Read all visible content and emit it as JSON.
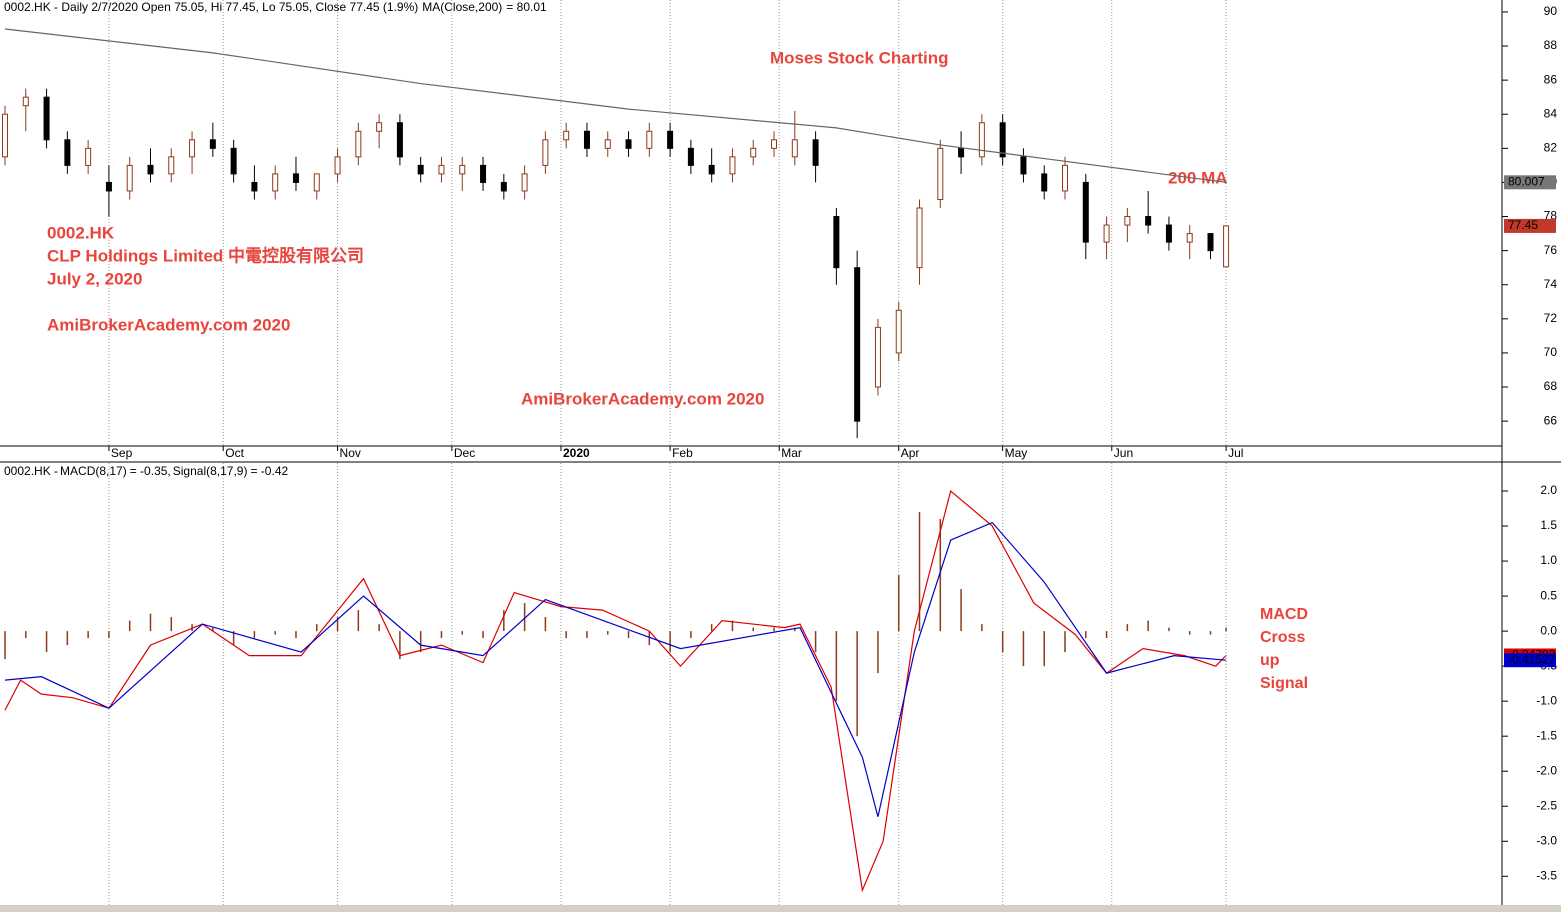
{
  "chart_data": [
    {
      "type": "candlestick",
      "title": "0002.HK - Daily 2/7/2020 Open 75.05, Hi 77.45, Lo 75.05, Close 77.45 (1.9%)",
      "annotations": [
        "Moses Stock Charting",
        "200 MA",
        "0002.HK",
        "CLP Holdings Limited 中電控股有限公司",
        "July 2, 2020",
        "AmiBrokerAcademy.com  2020",
        "AmiBrokerAcademy.com  2020"
      ],
      "xlim": [
        0,
        288.1
      ],
      "xticks": [
        {
          "value": 20,
          "label": "Sep"
        },
        {
          "value": 42,
          "label": "Oct"
        },
        {
          "value": 64,
          "label": "Nov"
        },
        {
          "value": 86,
          "label": "Dec"
        },
        {
          "value": 107,
          "label": "2020"
        },
        {
          "value": 128,
          "label": "Feb"
        },
        {
          "value": 149,
          "label": "Mar"
        },
        {
          "value": 172,
          "label": "Apr"
        },
        {
          "value": 192,
          "label": "May"
        },
        {
          "value": 213,
          "label": "Jun"
        },
        {
          "value": 235,
          "label": "Jul"
        }
      ],
      "ylim": [
        64.6,
        90.7
      ],
      "yticks": [
        66,
        68,
        70,
        72,
        74,
        76,
        78,
        80,
        82,
        84,
        86,
        88,
        90
      ],
      "up_color": "#8b3a1a",
      "down_color": "#000000",
      "candles": {
        "x": [
          0,
          4,
          8,
          12,
          16,
          20,
          24,
          28,
          32,
          36,
          40,
          44,
          48,
          52,
          56,
          60,
          64,
          68,
          72,
          76,
          80,
          84,
          88,
          92,
          96,
          100,
          104,
          108,
          112,
          116,
          120,
          124,
          128,
          132,
          136,
          140,
          144,
          148,
          152,
          156,
          160,
          164,
          168,
          172,
          176,
          180,
          184,
          188,
          192,
          196,
          200,
          204,
          208,
          212,
          216,
          220,
          224,
          228,
          232,
          235
        ],
        "open": [
          81.5,
          84.5,
          85,
          82.5,
          81,
          80,
          79.5,
          81,
          80.5,
          81.5,
          82.5,
          82,
          80,
          79.5,
          80.5,
          79.5,
          80.5,
          81.5,
          83,
          83.5,
          81,
          80.5,
          80.5,
          81,
          80,
          79.5,
          81,
          82.5,
          83,
          82,
          82.5,
          82,
          83,
          82,
          81,
          80.5,
          81.5,
          82,
          81.5,
          82.5,
          78,
          75,
          68,
          70,
          75,
          79,
          82,
          81.5,
          83.5,
          81.5,
          80.5,
          79.5,
          80,
          76.5,
          77.5,
          78,
          77.5,
          76.5,
          77,
          75.05
        ],
        "high": [
          84.5,
          85.5,
          85.5,
          83,
          82.5,
          81,
          81.5,
          82,
          82,
          83,
          83.5,
          82.5,
          81,
          81,
          81.5,
          80.5,
          82,
          83.5,
          84,
          84,
          81.5,
          81.5,
          81.5,
          81.5,
          80.5,
          81,
          83,
          83.5,
          83.5,
          83,
          83,
          83.5,
          83.5,
          82.5,
          82,
          82,
          82.5,
          83,
          84.2,
          83,
          78.5,
          76,
          72,
          73,
          79,
          82.5,
          83,
          84,
          84,
          82,
          81,
          81.5,
          80.5,
          78,
          78.5,
          79.5,
          78,
          77.5,
          77,
          77.45
        ],
        "low": [
          81,
          83,
          82,
          80.5,
          80.5,
          78,
          79,
          80,
          80,
          80.5,
          81.5,
          80,
          79,
          79,
          79.5,
          79,
          80,
          81,
          82,
          81,
          80,
          80,
          79.5,
          79.5,
          79,
          79,
          80.5,
          82,
          81.5,
          81.5,
          81.5,
          81.5,
          81.5,
          80.5,
          80,
          80,
          81,
          81.5,
          81,
          80,
          74,
          65,
          67.5,
          69.5,
          74,
          78.5,
          80.5,
          81,
          81,
          80,
          79,
          79,
          75.5,
          75.5,
          76.5,
          77,
          76,
          75.5,
          75.5,
          75.05
        ],
        "close": [
          84,
          85,
          82.5,
          81,
          82,
          79.5,
          81,
          80.5,
          81.5,
          82.5,
          82,
          80.5,
          79.5,
          80.5,
          80,
          80.5,
          81.5,
          83,
          83.5,
          81.5,
          80.5,
          81,
          81,
          80,
          79.5,
          80.5,
          82.5,
          83,
          82,
          82.5,
          82,
          83,
          82,
          81,
          80.5,
          81.5,
          82,
          82.5,
          82.5,
          81,
          75,
          66,
          71.5,
          72.5,
          78.5,
          82,
          81.5,
          83.5,
          81.5,
          80.5,
          79.5,
          81,
          76.5,
          77.5,
          78,
          77.5,
          76.5,
          77,
          76,
          77.45
        ]
      },
      "series": [
        {
          "name": "MA(Close,200)",
          "legend_value_label": "= 80.01",
          "color": "#666666",
          "x": [
            0,
            40,
            80,
            120,
            160,
            180,
            200,
            220,
            235
          ],
          "values": [
            89,
            87.6,
            85.8,
            84.3,
            83.2,
            82.2,
            81.4,
            80.6,
            80.007
          ]
        }
      ]
    },
    {
      "type": "macd",
      "title": "0002.HK - ",
      "annotations": [
        "MACD",
        "Cross",
        "up",
        "Signal"
      ],
      "ylim": [
        -3.91,
        2.4
      ],
      "yticks": [
        {
          "value": 2,
          "label": "2.0"
        },
        {
          "value": 1.5,
          "label": "1.5"
        },
        {
          "value": 1,
          "label": "1.0"
        },
        {
          "value": 0.5,
          "label": "0.5"
        },
        {
          "value": 0,
          "label": "0.0"
        },
        {
          "value": -0.5,
          "label": "-0.5"
        },
        {
          "value": -1,
          "label": "-1.0"
        },
        {
          "value": -1.5,
          "label": "-1.5"
        },
        {
          "value": -2,
          "label": "-2.0"
        },
        {
          "value": -2.5,
          "label": "-2.5"
        },
        {
          "value": -3,
          "label": "-3.0"
        },
        {
          "value": -3.5,
          "label": "-3.5"
        }
      ],
      "series": [
        {
          "name": "MACD(8,17)",
          "legend_value_label": "= -0.35, ",
          "color": "#dd0000",
          "x": [
            0,
            3,
            7,
            13,
            20,
            28,
            38,
            47,
            57,
            69,
            76,
            84,
            92,
            98,
            107,
            115,
            124,
            130,
            138,
            150,
            153,
            159,
            165,
            169,
            175,
            182,
            190,
            198,
            206,
            212,
            219,
            227,
            233,
            235
          ],
          "values": [
            -1.13,
            -0.7,
            -0.9,
            -0.95,
            -1.1,
            -0.2,
            0.1,
            -0.35,
            -0.35,
            0.75,
            -0.35,
            -0.2,
            -0.45,
            0.55,
            0.35,
            0.3,
            0,
            -0.5,
            0.15,
            0.05,
            0.1,
            -0.8,
            -3.7,
            -3,
            0,
            2,
            1.5,
            0.4,
            -0.05,
            -0.6,
            -0.25,
            -0.35,
            -0.5,
            -0.34793
          ]
        },
        {
          "name": "Signal(8,17,9)",
          "legend_value_label": "= -0.42",
          "color": "#0000cc",
          "x": [
            0,
            7,
            20,
            38,
            57,
            69,
            80,
            92,
            104,
            130,
            153,
            165,
            168,
            175,
            182,
            190,
            200,
            212,
            225,
            235
          ],
          "values": [
            -0.7,
            -0.65,
            -1.1,
            0.1,
            -0.3,
            0.5,
            -0.2,
            -0.35,
            0.45,
            -0.25,
            0.05,
            -1.8,
            -2.65,
            -0.3,
            1.3,
            1.55,
            0.7,
            -0.6,
            -0.35,
            -0.41527
          ]
        }
      ],
      "histogram": {
        "color": "#8b3a1a",
        "x": [
          0,
          4,
          8,
          12,
          16,
          20,
          24,
          28,
          32,
          36,
          40,
          44,
          48,
          52,
          56,
          60,
          64,
          68,
          72,
          76,
          80,
          84,
          88,
          92,
          96,
          100,
          104,
          108,
          112,
          116,
          120,
          124,
          128,
          132,
          136,
          140,
          144,
          148,
          152,
          156,
          160,
          164,
          168,
          172,
          176,
          180,
          184,
          188,
          192,
          196,
          200,
          204,
          208,
          212,
          216,
          220,
          224,
          228,
          232,
          235
        ],
        "values": [
          -0.4,
          -0.1,
          -0.3,
          -0.2,
          -0.1,
          -0.1,
          0.15,
          0.25,
          0.2,
          0.1,
          0.05,
          -0.2,
          -0.1,
          -0.05,
          -0.1,
          0.1,
          0.2,
          0.3,
          0.1,
          -0.4,
          -0.3,
          -0.1,
          -0.05,
          -0.1,
          0.3,
          0.4,
          0.2,
          -0.1,
          -0.1,
          -0.05,
          -0.1,
          -0.2,
          -0.3,
          -0.1,
          0.1,
          0.15,
          0.05,
          0.05,
          0.05,
          -0.3,
          -1,
          -1.5,
          -0.6,
          0.8,
          1.7,
          1.6,
          0.6,
          0.1,
          -0.3,
          -0.5,
          -0.5,
          -0.3,
          -0.1,
          -0.1,
          0.1,
          0.15,
          0.05,
          -0.05,
          -0.05,
          0.05
        ]
      }
    }
  ]
}
